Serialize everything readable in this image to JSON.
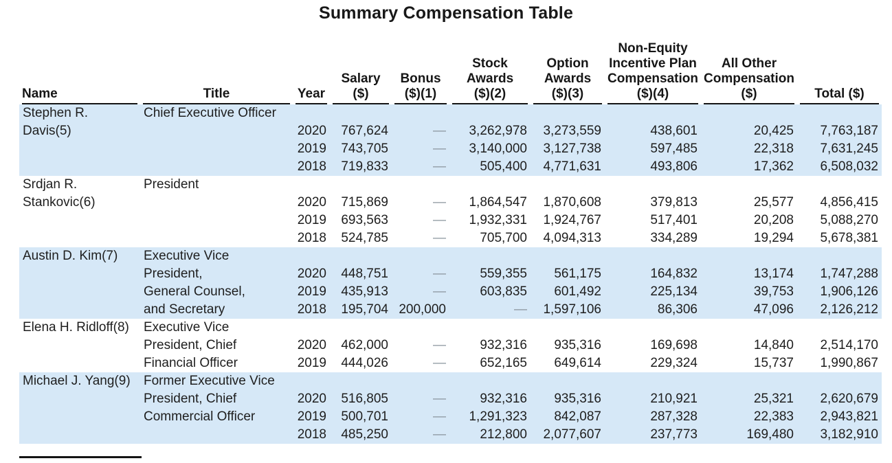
{
  "title": "Summary Compensation Table",
  "dash_char": "—",
  "colors": {
    "band": "#d6e8f7",
    "dash": "#8a949c",
    "rule": "#141414"
  },
  "table": {
    "headers": [
      {
        "id": "name",
        "align": "left",
        "lines": [
          "Name"
        ]
      },
      {
        "id": "title",
        "align": "center",
        "lines": [
          "Title"
        ]
      },
      {
        "id": "year",
        "align": "center",
        "lines": [
          "Year"
        ]
      },
      {
        "id": "salary",
        "align": "center",
        "lines": [
          "Salary",
          "($)"
        ]
      },
      {
        "id": "bonus",
        "align": "center",
        "lines": [
          "Bonus",
          "($)(1)"
        ]
      },
      {
        "id": "stock",
        "align": "center",
        "lines": [
          "Stock",
          "Awards",
          "($)(2)"
        ]
      },
      {
        "id": "option",
        "align": "center",
        "lines": [
          "Option",
          "Awards",
          "($)(3)"
        ]
      },
      {
        "id": "non_equity",
        "align": "center",
        "lines": [
          "Non-Equity",
          "Incentive Plan",
          "Compensation",
          "($)(4)"
        ]
      },
      {
        "id": "all_other",
        "align": "center",
        "lines": [
          "All Other",
          "Compensation",
          "($)"
        ]
      },
      {
        "id": "total",
        "align": "center",
        "lines": [
          "Total ($)"
        ]
      }
    ],
    "groups": [
      {
        "shaded": true,
        "name_lines": [
          "Stephen R.",
          "Davis(5)"
        ],
        "title_lines": [
          "Chief Executive Officer"
        ],
        "rows": [
          {
            "year": "2020",
            "salary": "767,624",
            "bonus": "—",
            "stock": "3,262,978",
            "option": "3,273,559",
            "non_equity": "438,601",
            "all_other": "20,425",
            "total": "7,763,187"
          },
          {
            "year": "2019",
            "salary": "743,705",
            "bonus": "—",
            "stock": "3,140,000",
            "option": "3,127,738",
            "non_equity": "597,485",
            "all_other": "22,318",
            "total": "7,631,245"
          },
          {
            "year": "2018",
            "salary": "719,833",
            "bonus": "—",
            "stock": "505,400",
            "option": "4,771,631",
            "non_equity": "493,806",
            "all_other": "17,362",
            "total": "6,508,032"
          }
        ]
      },
      {
        "shaded": false,
        "name_lines": [
          "Srdjan R.",
          "Stankovic(6)"
        ],
        "title_lines": [
          "President"
        ],
        "rows": [
          {
            "year": "2020",
            "salary": "715,869",
            "bonus": "—",
            "stock": "1,864,547",
            "option": "1,870,608",
            "non_equity": "379,813",
            "all_other": "25,577",
            "total": "4,856,415"
          },
          {
            "year": "2019",
            "salary": "693,563",
            "bonus": "—",
            "stock": "1,932,331",
            "option": "1,924,767",
            "non_equity": "517,401",
            "all_other": "20,208",
            "total": "5,088,270"
          },
          {
            "year": "2018",
            "salary": "524,785",
            "bonus": "—",
            "stock": "705,700",
            "option": "4,094,313",
            "non_equity": "334,289",
            "all_other": "19,294",
            "total": "5,678,381"
          }
        ]
      },
      {
        "shaded": true,
        "name_lines": [
          "Austin D. Kim(7)"
        ],
        "title_lines": [
          "Executive Vice",
          "President,",
          "General Counsel,",
          "and Secretary"
        ],
        "rows": [
          {
            "year": "2020",
            "salary": "448,751",
            "bonus": "—",
            "stock": "559,355",
            "option": "561,175",
            "non_equity": "164,832",
            "all_other": "13,174",
            "total": "1,747,288"
          },
          {
            "year": "2019",
            "salary": "435,913",
            "bonus": "—",
            "stock": "603,835",
            "option": "601,492",
            "non_equity": "225,134",
            "all_other": "39,753",
            "total": "1,906,126"
          },
          {
            "year": "2018",
            "salary": "195,704",
            "bonus": "200,000",
            "stock": "—",
            "option": "1,597,106",
            "non_equity": "86,306",
            "all_other": "47,096",
            "total": "2,126,212"
          }
        ]
      },
      {
        "shaded": false,
        "name_lines": [
          "Elena H. Ridloff(8)"
        ],
        "title_lines": [
          "Executive Vice",
          "President, Chief",
          "Financial Officer"
        ],
        "rows": [
          {
            "year": "2020",
            "salary": "462,000",
            "bonus": "—",
            "stock": "932,316",
            "option": "935,316",
            "non_equity": "169,698",
            "all_other": "14,840",
            "total": "2,514,170"
          },
          {
            "year": "2019",
            "salary": "444,026",
            "bonus": "—",
            "stock": "652,165",
            "option": "649,614",
            "non_equity": "229,324",
            "all_other": "15,737",
            "total": "1,990,867"
          }
        ]
      },
      {
        "shaded": true,
        "name_lines": [
          "Michael J. Yang(9)"
        ],
        "title_lines": [
          "Former Executive Vice",
          "President, Chief",
          "Commercial Officer"
        ],
        "rows": [
          {
            "year": "2020",
            "salary": "516,805",
            "bonus": "—",
            "stock": "932,316",
            "option": "935,316",
            "non_equity": "210,921",
            "all_other": "25,321",
            "total": "2,620,679"
          },
          {
            "year": "2019",
            "salary": "500,701",
            "bonus": "—",
            "stock": "1,291,323",
            "option": "842,087",
            "non_equity": "287,328",
            "all_other": "22,383",
            "total": "2,943,821"
          },
          {
            "year": "2018",
            "salary": "485,250",
            "bonus": "—",
            "stock": "212,800",
            "option": "2,077,607",
            "non_equity": "237,773",
            "all_other": "169,480",
            "total": "3,182,910"
          }
        ]
      }
    ]
  }
}
